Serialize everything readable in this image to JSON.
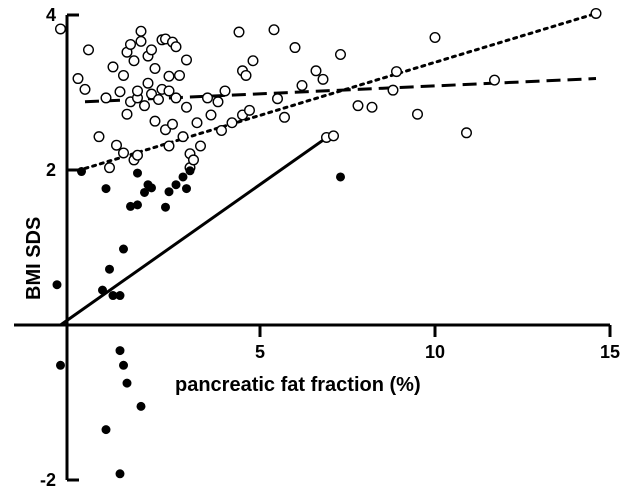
{
  "chart_data": {
    "type": "scatter",
    "xlabel": "pancreatic fat fraction (%)",
    "ylabel": "BMI SDS",
    "xlim": [
      -1.0,
      15.0
    ],
    "ylim": [
      -2.0,
      4.0
    ],
    "x_ticks": [
      "5",
      "10",
      "15"
    ],
    "y_ticks": [
      "4",
      "2",
      "-2"
    ],
    "grid": false,
    "series": [
      {
        "marker": "open-circle",
        "points": [
          [
            -0.7,
            3.82
          ],
          [
            -0.2,
            3.18
          ],
          [
            0.1,
            3.55
          ],
          [
            0.0,
            3.04
          ],
          [
            0.4,
            2.43
          ],
          [
            0.7,
            2.03
          ],
          [
            0.6,
            2.93
          ],
          [
            0.8,
            3.33
          ],
          [
            0.9,
            2.32
          ],
          [
            1.0,
            3.01
          ],
          [
            1.1,
            2.22
          ],
          [
            1.1,
            3.22
          ],
          [
            1.2,
            3.52
          ],
          [
            1.2,
            2.72
          ],
          [
            1.3,
            2.88
          ],
          [
            1.3,
            3.62
          ],
          [
            1.4,
            2.13
          ],
          [
            1.4,
            3.41
          ],
          [
            1.5,
            2.93
          ],
          [
            1.5,
            3.02
          ],
          [
            1.5,
            2.19
          ],
          [
            1.6,
            3.66
          ],
          [
            1.6,
            3.79
          ],
          [
            1.7,
            2.83
          ],
          [
            1.8,
            3.12
          ],
          [
            1.8,
            3.47
          ],
          [
            1.9,
            2.98
          ],
          [
            1.9,
            3.55
          ],
          [
            2.0,
            2.63
          ],
          [
            2.0,
            3.31
          ],
          [
            2.1,
            2.91
          ],
          [
            2.2,
            3.68
          ],
          [
            2.2,
            3.04
          ],
          [
            2.3,
            3.69
          ],
          [
            2.3,
            2.52
          ],
          [
            2.4,
            3.21
          ],
          [
            2.4,
            3.02
          ],
          [
            2.4,
            2.31
          ],
          [
            2.5,
            3.65
          ],
          [
            2.5,
            2.59
          ],
          [
            2.6,
            3.59
          ],
          [
            2.6,
            2.93
          ],
          [
            2.7,
            3.22
          ],
          [
            2.8,
            2.43
          ],
          [
            2.9,
            3.42
          ],
          [
            2.9,
            2.81
          ],
          [
            3.0,
            2.03
          ],
          [
            3.0,
            2.21
          ],
          [
            3.1,
            2.13
          ],
          [
            3.2,
            2.61
          ],
          [
            3.3,
            2.31
          ],
          [
            3.5,
            2.93
          ],
          [
            3.6,
            2.71
          ],
          [
            3.8,
            2.88
          ],
          [
            3.9,
            2.51
          ],
          [
            4.0,
            3.02
          ],
          [
            4.2,
            2.61
          ],
          [
            4.4,
            3.78
          ],
          [
            4.5,
            2.71
          ],
          [
            4.5,
            3.28
          ],
          [
            4.6,
            3.22
          ],
          [
            4.7,
            2.77
          ],
          [
            4.8,
            3.41
          ],
          [
            5.4,
            3.81
          ],
          [
            5.5,
            2.92
          ],
          [
            5.7,
            2.68
          ],
          [
            6.0,
            3.58
          ],
          [
            6.2,
            3.09
          ],
          [
            6.6,
            3.28
          ],
          [
            6.8,
            3.17
          ],
          [
            6.9,
            2.42
          ],
          [
            7.1,
            2.44
          ],
          [
            7.3,
            3.49
          ],
          [
            7.8,
            2.83
          ],
          [
            8.2,
            2.81
          ],
          [
            8.8,
            3.03
          ],
          [
            8.9,
            3.27
          ],
          [
            9.5,
            2.72
          ],
          [
            10.0,
            3.71
          ],
          [
            10.9,
            2.48
          ],
          [
            11.7,
            3.16
          ],
          [
            14.6,
            4.02
          ]
        ]
      },
      {
        "marker": "filled-circle",
        "points": [
          [
            -0.1,
            1.98
          ],
          [
            -0.8,
            0.52
          ],
          [
            0.5,
            0.45
          ],
          [
            0.6,
            1.76
          ],
          [
            0.7,
            0.72
          ],
          [
            0.8,
            0.38
          ],
          [
            1.0,
            0.38
          ],
          [
            1.0,
            -0.33
          ],
          [
            1.1,
            0.98
          ],
          [
            1.1,
            -0.52
          ],
          [
            1.2,
            -0.75
          ],
          [
            1.3,
            1.53
          ],
          [
            1.5,
            1.96
          ],
          [
            1.5,
            1.55
          ],
          [
            1.6,
            -1.05
          ],
          [
            1.7,
            1.71
          ],
          [
            1.8,
            1.81
          ],
          [
            1.9,
            1.77
          ],
          [
            2.3,
            1.52
          ],
          [
            2.4,
            1.72
          ],
          [
            2.6,
            1.81
          ],
          [
            2.8,
            1.91
          ],
          [
            2.9,
            1.76
          ],
          [
            3.0,
            1.99
          ],
          [
            7.3,
            1.91
          ],
          [
            -0.7,
            -0.52
          ],
          [
            0.6,
            -1.35
          ],
          [
            1.0,
            -1.92
          ]
        ]
      }
    ],
    "fit_lines": [
      {
        "style": "dashed",
        "x": [
          0,
          14.6
        ],
        "y": [
          2.88,
          3.18
        ]
      },
      {
        "style": "dotted",
        "x": [
          0,
          14.6
        ],
        "y": [
          2.02,
          4.02
        ]
      },
      {
        "style": "solid",
        "x": [
          -0.7,
          7.1
        ],
        "y": [
          0.0,
          2.48
        ]
      }
    ]
  }
}
